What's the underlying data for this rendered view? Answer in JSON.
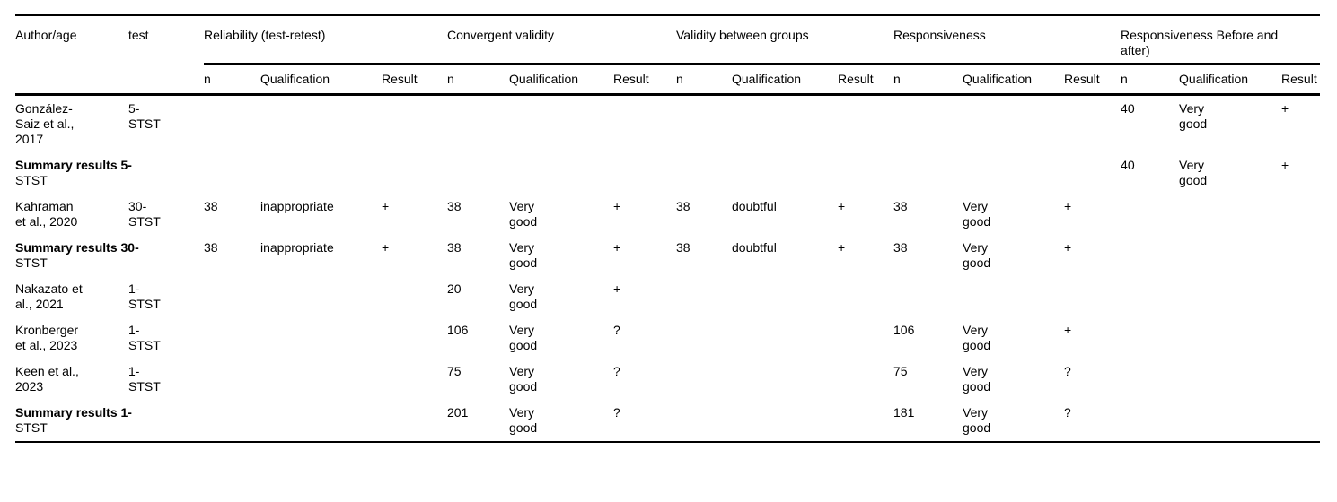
{
  "page": {
    "background_color": "#ffffff",
    "text_color": "#000000",
    "rule_color": "#000000"
  },
  "table": {
    "header": {
      "author_col": "Author/age",
      "test_col": "test",
      "groups": [
        {
          "key": "rel",
          "label": "Reliability (test-retest)"
        },
        {
          "key": "conv",
          "label": "Convergent validity"
        },
        {
          "key": "vbg",
          "label": "Validity between groups"
        },
        {
          "key": "resp",
          "label": "Responsiveness"
        },
        {
          "key": "rba",
          "label": "Responsiveness Before and after)"
        }
      ],
      "subcolumns": [
        "n",
        "Qualification",
        "Result"
      ]
    },
    "rows": [
      {
        "type": "study",
        "author": "González-Saiz et al., 2017",
        "test": "5-STST",
        "rel": [
          "",
          "",
          ""
        ],
        "conv": [
          "",
          "",
          ""
        ],
        "vbg": [
          "",
          "",
          ""
        ],
        "resp": [
          "",
          "",
          ""
        ],
        "rba": [
          "40",
          "Very good",
          "+"
        ]
      },
      {
        "type": "summary",
        "label_bold": "Summary results 5-",
        "label_rest": "STST",
        "rel": [
          "",
          "",
          ""
        ],
        "conv": [
          "",
          "",
          ""
        ],
        "vbg": [
          "",
          "",
          ""
        ],
        "resp": [
          "",
          "",
          ""
        ],
        "rba": [
          "40",
          "Very good",
          "+"
        ]
      },
      {
        "type": "study",
        "author": "Kahraman et al., 2020",
        "test": "30-STST",
        "rel": [
          "38",
          "inappropriate",
          "+"
        ],
        "conv": [
          "38",
          "Very good",
          "+"
        ],
        "vbg": [
          "38",
          "doubtful",
          "+"
        ],
        "resp": [
          "38",
          "Very good",
          "+"
        ],
        "rba": [
          "",
          "",
          ""
        ]
      },
      {
        "type": "summary",
        "label_bold": "Summary results 30-",
        "label_rest": "STST",
        "rel": [
          "38",
          "inappropriate",
          "+"
        ],
        "conv": [
          "38",
          "Very good",
          "+"
        ],
        "vbg": [
          "38",
          "doubtful",
          "+"
        ],
        "resp": [
          "38",
          "Very good",
          "+"
        ],
        "rba": [
          "",
          "",
          ""
        ]
      },
      {
        "type": "study",
        "author": "Nakazato et al., 2021",
        "test": "1-STST",
        "rel": [
          "",
          "",
          ""
        ],
        "conv": [
          "20",
          "Very good",
          "+"
        ],
        "vbg": [
          "",
          "",
          ""
        ],
        "resp": [
          "",
          "",
          ""
        ],
        "rba": [
          "",
          "",
          ""
        ]
      },
      {
        "type": "study",
        "author": "Kronberger et al., 2023",
        "test": "1-STST",
        "rel": [
          "",
          "",
          ""
        ],
        "conv": [
          "106",
          "Very good",
          "?"
        ],
        "vbg": [
          "",
          "",
          ""
        ],
        "resp": [
          "106",
          "Very good",
          "+"
        ],
        "rba": [
          "",
          "",
          ""
        ]
      },
      {
        "type": "study",
        "author": "Keen et al., 2023",
        "test": "1-STST",
        "rel": [
          "",
          "",
          ""
        ],
        "conv": [
          "75",
          "Very good",
          "?"
        ],
        "vbg": [
          "",
          "",
          ""
        ],
        "resp": [
          "75",
          "Very good",
          "?"
        ],
        "rba": [
          "",
          "",
          ""
        ]
      },
      {
        "type": "summary",
        "label_bold": "Summary results 1-",
        "label_rest": "STST",
        "rel": [
          "",
          "",
          ""
        ],
        "conv": [
          "201",
          "Very good",
          "?"
        ],
        "vbg": [
          "",
          "",
          ""
        ],
        "resp": [
          "181",
          "Very good",
          "?"
        ],
        "rba": [
          "",
          "",
          ""
        ]
      }
    ]
  }
}
